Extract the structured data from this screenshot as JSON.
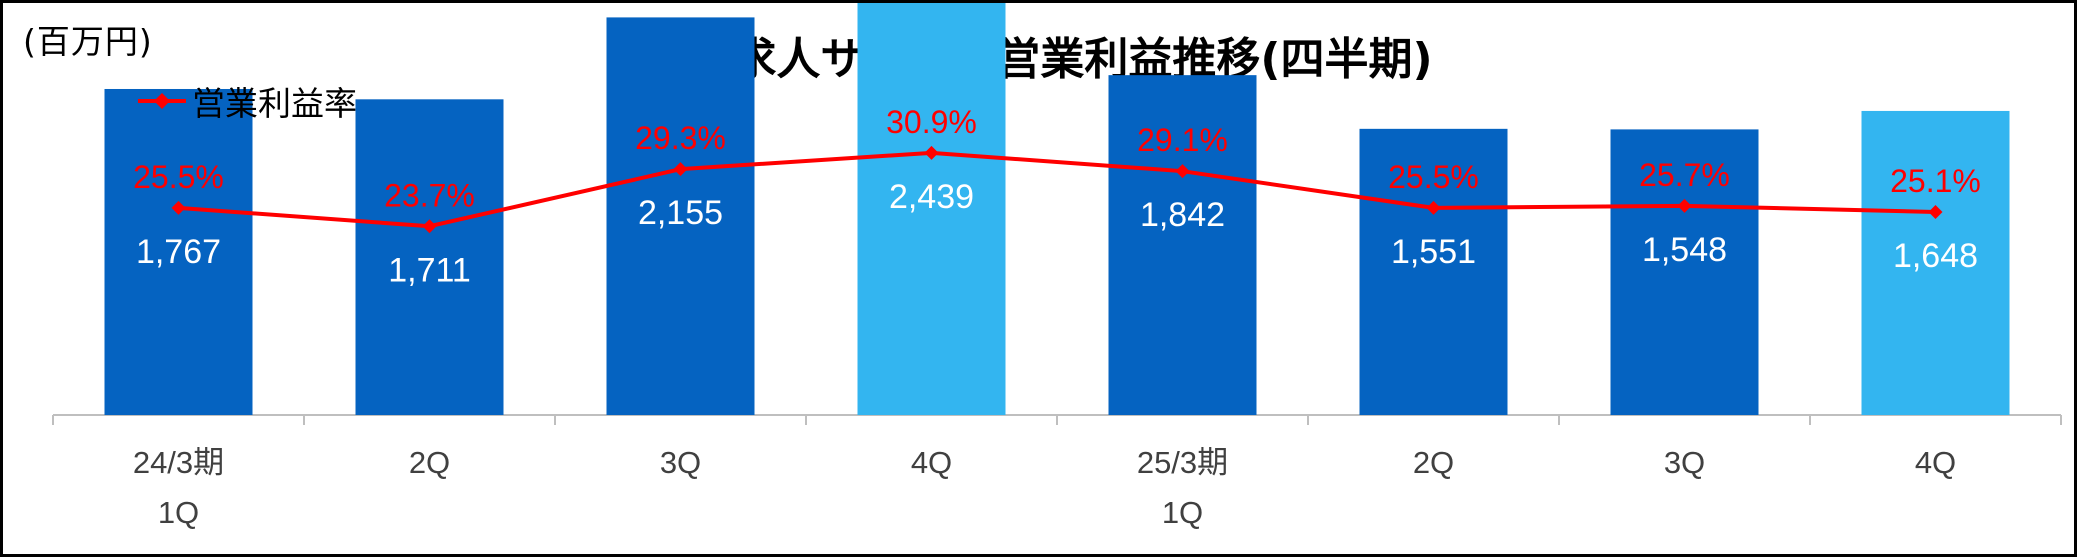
{
  "chart_data": {
    "type": "bar",
    "title": "国内求人サイトの営業利益推移(四半期)",
    "unit_label": "(百万円)",
    "categories": [
      {
        "line1": "24/3期",
        "line2": "1Q"
      },
      {
        "line1": "2Q",
        "line2": ""
      },
      {
        "line1": "3Q",
        "line2": ""
      },
      {
        "line1": "4Q",
        "line2": ""
      },
      {
        "line1": "25/3期",
        "line2": "1Q"
      },
      {
        "line1": "2Q",
        "line2": ""
      },
      {
        "line1": "3Q",
        "line2": ""
      },
      {
        "line1": "4Q",
        "line2": ""
      }
    ],
    "series": [
      {
        "type": "bar",
        "values": [
          1767,
          1711,
          2155,
          2439,
          1842,
          1551,
          1548,
          1648
        ],
        "value_labels": [
          "1,767",
          "1,711",
          "2,155",
          "2,439",
          "1,842",
          "1,551",
          "1,548",
          "1,648"
        ],
        "colors": [
          "#0563C1",
          "#0563C1",
          "#0563C1",
          "#33B5F0",
          "#0563C1",
          "#0563C1",
          "#0563C1",
          "#33B5F0"
        ]
      },
      {
        "type": "line",
        "name": "営業利益率",
        "values": [
          25.5,
          23.7,
          29.3,
          30.9,
          29.1,
          25.5,
          25.7,
          25.1
        ],
        "value_labels": [
          "25.5%",
          "23.7%",
          "29.3%",
          "30.9%",
          "29.1%",
          "25.5%",
          "25.7%",
          "25.1%"
        ],
        "color": "#FF0000"
      }
    ],
    "bar_ylim": [
      0,
      2600
    ],
    "line_ylim": [
      0,
      36
    ],
    "legend_position": "top-left",
    "grid": false
  }
}
